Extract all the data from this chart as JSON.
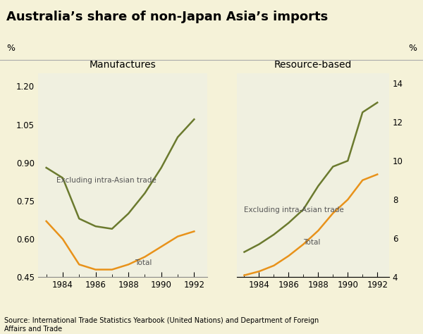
{
  "title": "Australia’s share of non-Japan Asia’s imports",
  "ylabel_left": "%",
  "ylabel_right": "%",
  "source": "Source: International Trade Statistics Yearbook (United Nations) and Department of Foreign\nAffairs and Trade",
  "subtitle_left": "Manufactures",
  "subtitle_right": "Resource-based",
  "years": [
    1983,
    1984,
    1985,
    1986,
    1987,
    1988,
    1989,
    1990,
    1991,
    1992
  ],
  "manuf_excl": [
    0.88,
    0.84,
    0.68,
    0.65,
    0.64,
    0.7,
    0.78,
    0.88,
    1.0,
    1.07
  ],
  "manuf_total": [
    0.67,
    0.6,
    0.5,
    0.48,
    0.48,
    0.5,
    0.53,
    0.57,
    0.61,
    0.63
  ],
  "resource_excl": [
    5.3,
    5.7,
    6.2,
    6.8,
    7.5,
    8.7,
    9.7,
    10.0,
    12.5,
    13.0
  ],
  "resource_total": [
    4.1,
    4.3,
    4.6,
    5.1,
    5.7,
    6.4,
    7.3,
    8.0,
    9.0,
    9.3
  ],
  "green_color": "#6b7a2e",
  "orange_color": "#e8921a",
  "left_ylim": [
    0.45,
    1.25
  ],
  "left_yticks": [
    0.45,
    0.6,
    0.75,
    0.9,
    1.05,
    1.2
  ],
  "right_ylim": [
    4,
    14.5
  ],
  "right_yticks": [
    4,
    6,
    8,
    10,
    12,
    14
  ],
  "xtick_labels": [
    "1984",
    "1986",
    "1988",
    "1990",
    "1992"
  ],
  "xtick_positions": [
    1984,
    1986,
    1988,
    1990,
    1992
  ],
  "title_bg": "#f5f2d8",
  "plot_bg": "#f0f0e0"
}
